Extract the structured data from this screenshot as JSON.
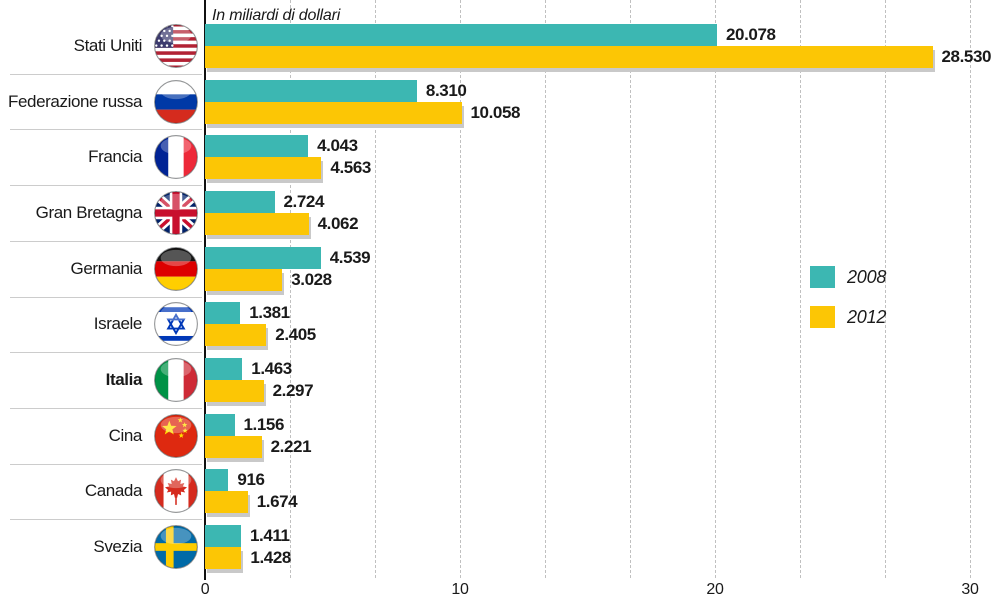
{
  "chart_data": {
    "type": "bar",
    "orientation": "horizontal",
    "title": "In miliardi di dollari",
    "x_ticks": [
      "0",
      "10",
      "20",
      "30"
    ],
    "x_tick_values": [
      0,
      10,
      20,
      30
    ],
    "xlim": [
      0,
      30.6
    ],
    "grid": "vertical dashed gridlines every 10/3 units",
    "legend_position": "middle-right",
    "legend": [
      {
        "label": "2008",
        "color": "#3cb7b2"
      },
      {
        "label": "2012",
        "color": "#fcc605"
      }
    ],
    "rows": [
      {
        "country": "Stati Uniti",
        "flag": "usa-flag-icon",
        "bold": false,
        "v2008": {
          "label": "20.078",
          "units": 20.078
        },
        "v2012": {
          "label": "28.530",
          "units": 28.53
        }
      },
      {
        "country": "Federazione russa",
        "flag": "russia-flag-icon",
        "bold": false,
        "v2008": {
          "label": "8.310",
          "units": 8.31
        },
        "v2012": {
          "label": "10.058",
          "units": 10.058
        }
      },
      {
        "country": "Francia",
        "flag": "france-flag-icon",
        "bold": false,
        "v2008": {
          "label": "4.043",
          "units": 4.043
        },
        "v2012": {
          "label": "4.563",
          "units": 4.563
        }
      },
      {
        "country": "Gran Bretagna",
        "flag": "uk-flag-icon",
        "bold": false,
        "v2008": {
          "label": "2.724",
          "units": 2.724
        },
        "v2012": {
          "label": "4.062",
          "units": 4.062
        }
      },
      {
        "country": "Germania",
        "flag": "germany-flag-icon",
        "bold": false,
        "v2008": {
          "label": "4.539",
          "units": 4.539
        },
        "v2012": {
          "label": "3.028",
          "units": 3.028
        }
      },
      {
        "country": "Israele",
        "flag": "israel-flag-icon",
        "bold": false,
        "v2008": {
          "label": "1.381",
          "units": 1.381
        },
        "v2012": {
          "label": "2.405",
          "units": 2.405
        }
      },
      {
        "country": "Italia",
        "flag": "italy-flag-icon",
        "bold": true,
        "v2008": {
          "label": "1.463",
          "units": 1.463
        },
        "v2012": {
          "label": "2.297",
          "units": 2.297
        }
      },
      {
        "country": "Cina",
        "flag": "china-flag-icon",
        "bold": false,
        "v2008": {
          "label": "1.156",
          "units": 1.156
        },
        "v2012": {
          "label": "2.221",
          "units": 2.221
        }
      },
      {
        "country": "Canada",
        "flag": "canada-flag-icon",
        "bold": false,
        "v2008": {
          "label": "916",
          "units": 0.916
        },
        "v2012": {
          "label": "1.674",
          "units": 1.674
        }
      },
      {
        "country": "Svezia",
        "flag": "sweden-flag-icon",
        "bold": false,
        "v2008": {
          "label": "1.411",
          "units": 1.411
        },
        "v2012": {
          "label": "1.428",
          "units": 1.428
        }
      }
    ],
    "colors": {
      "series_2008": "#3cb7b2",
      "series_2012": "#fcc605",
      "bar_shadow": "#c9c9c9",
      "gridline": "#c0c0c0",
      "axis": "#111111",
      "row_separator": "#cccccc",
      "text": "#1a1a1a"
    }
  }
}
